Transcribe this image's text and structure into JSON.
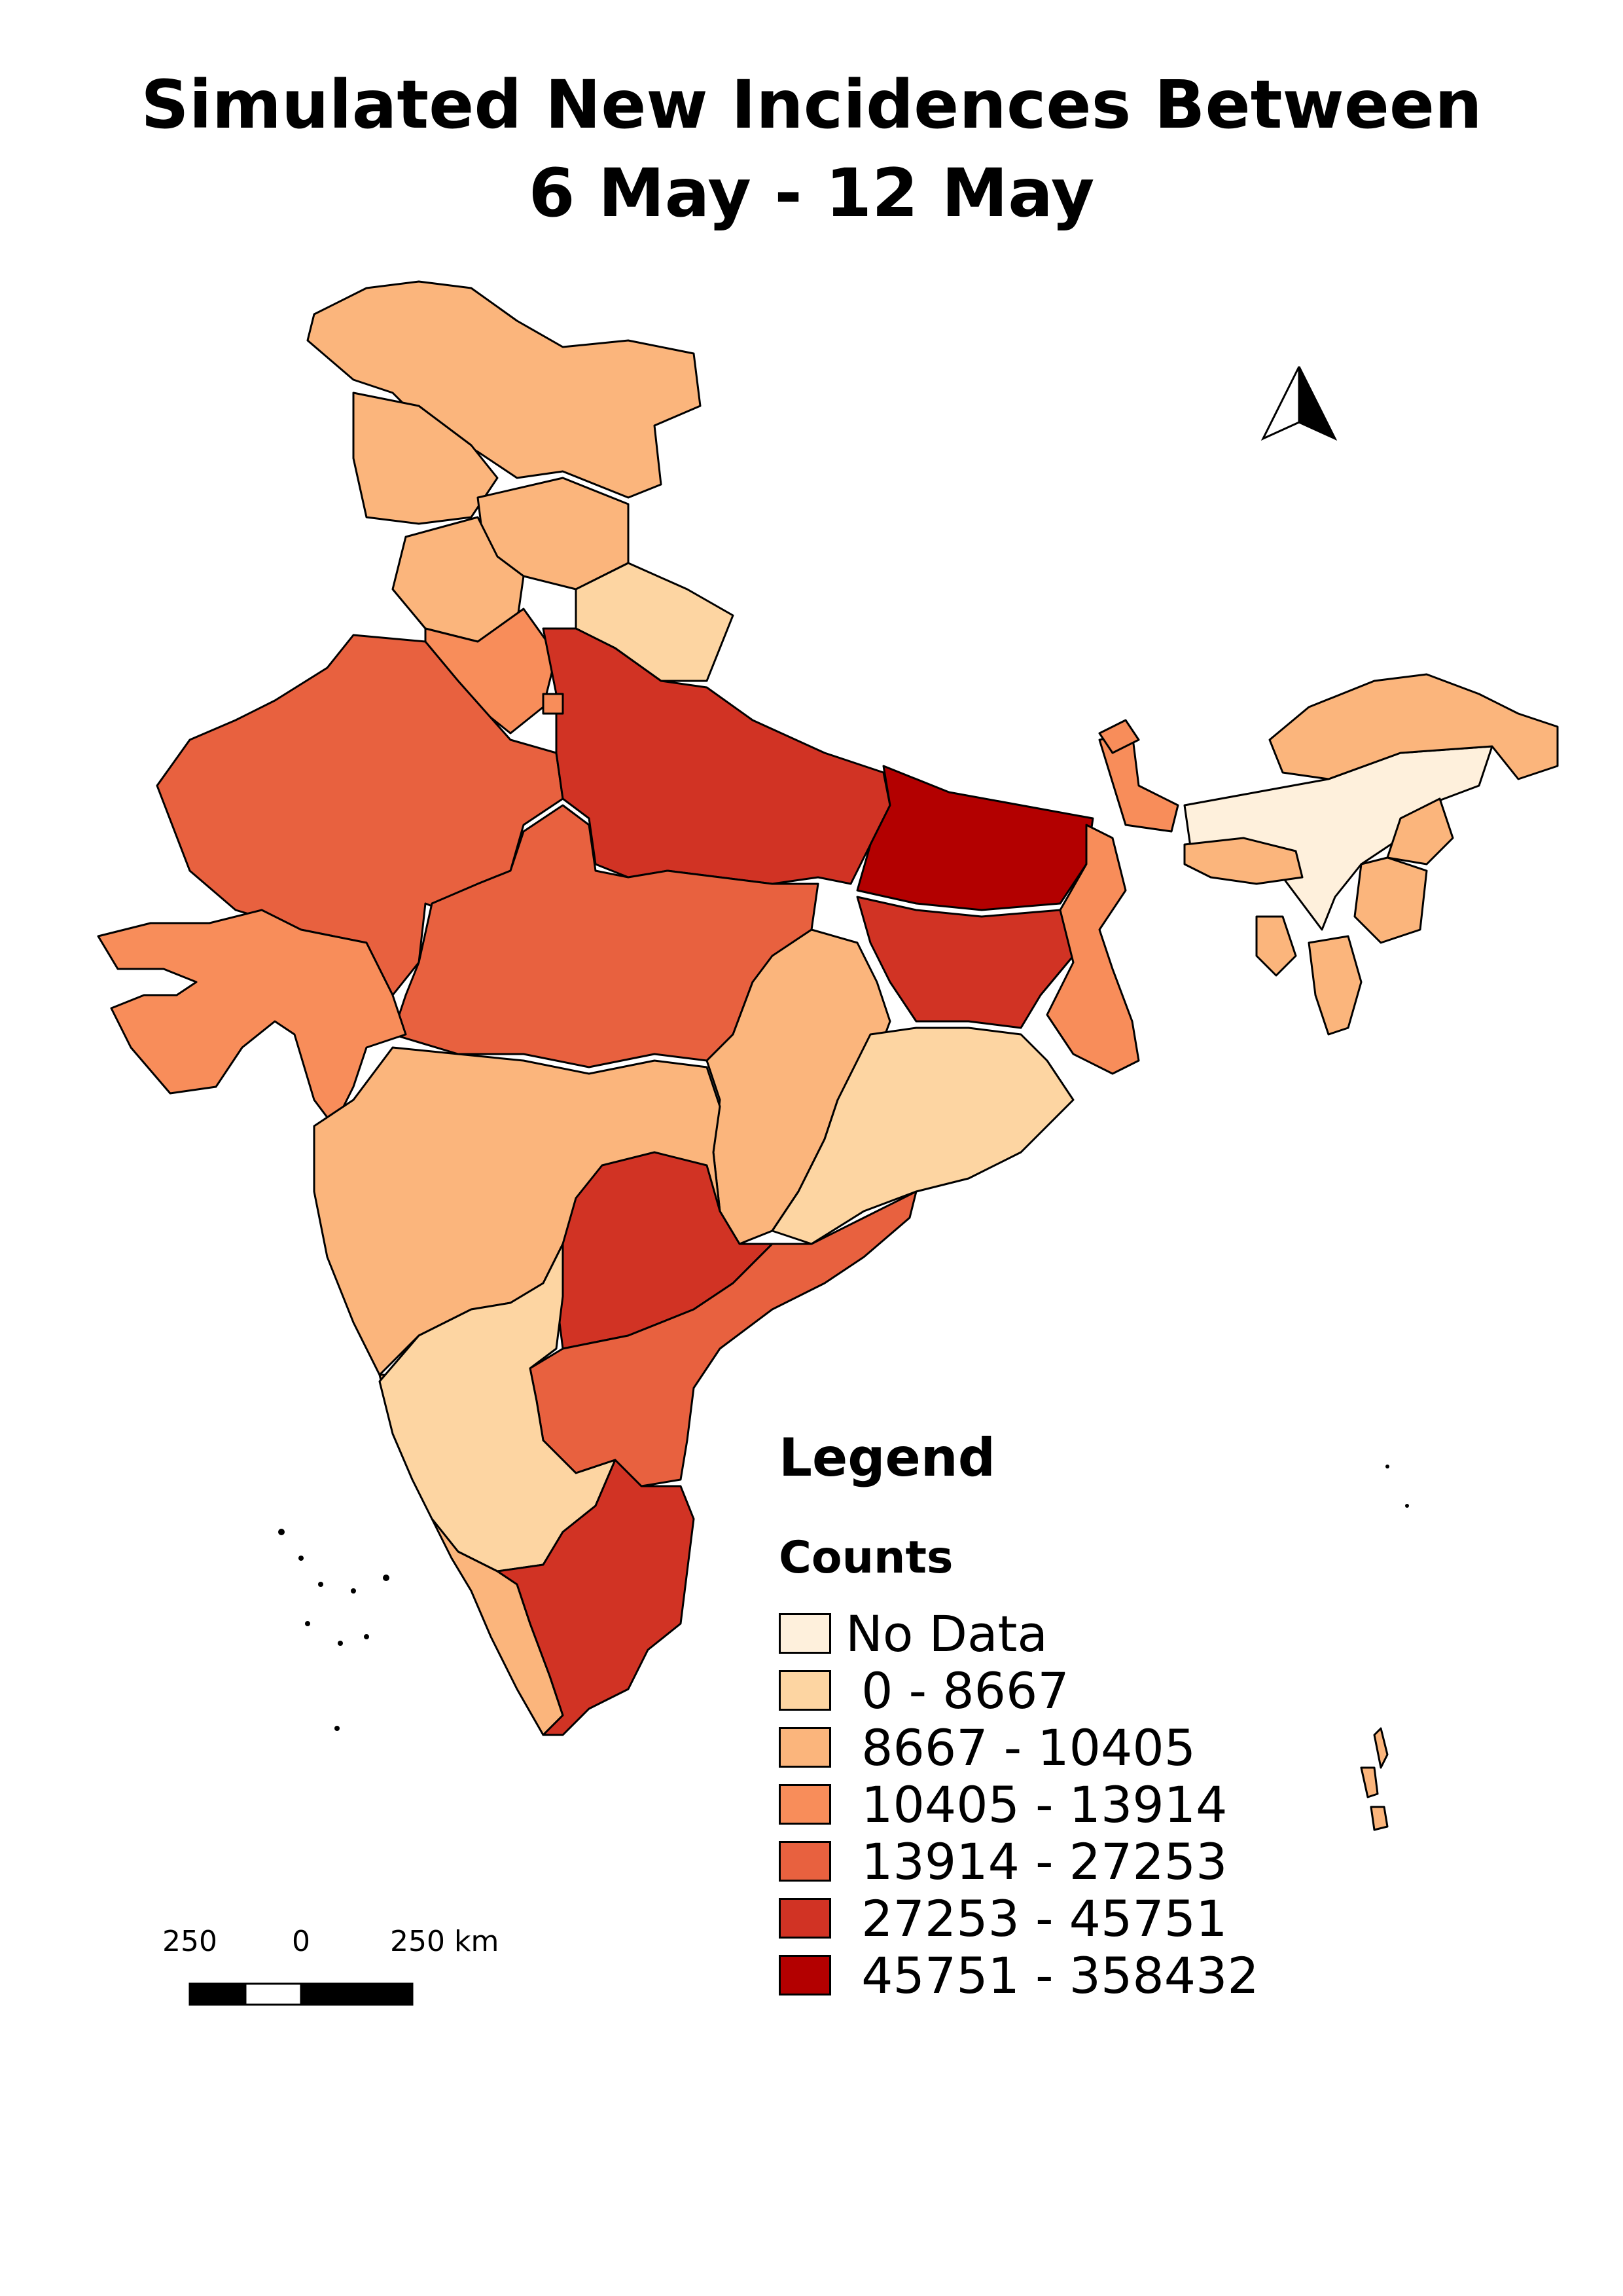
{
  "title": {
    "line1": "Simulated New Incidences Between",
    "line2": "6 May - 12 May"
  },
  "legend": {
    "heading": "Legend",
    "subheading": "Counts",
    "items": [
      {
        "label": "No Data",
        "color": "#fef0dc"
      },
      {
        "label": " 0 - 8667",
        "color": "#fdd5a2"
      },
      {
        "label": " 8667 - 10405",
        "color": "#fbb57c"
      },
      {
        "label": " 10405 - 13914",
        "color": "#f88d5a"
      },
      {
        "label": " 13914 - 27253",
        "color": "#e8613f"
      },
      {
        "label": " 27253 - 45751",
        "color": "#d13324"
      },
      {
        "label": " 45751 - 358432",
        "color": "#b30000"
      }
    ]
  },
  "scale_bar": {
    "left_label": "250",
    "mid_label": "0",
    "right_label": "250 km"
  },
  "north_arrow": {
    "icon": "north-arrow-icon"
  }
}
